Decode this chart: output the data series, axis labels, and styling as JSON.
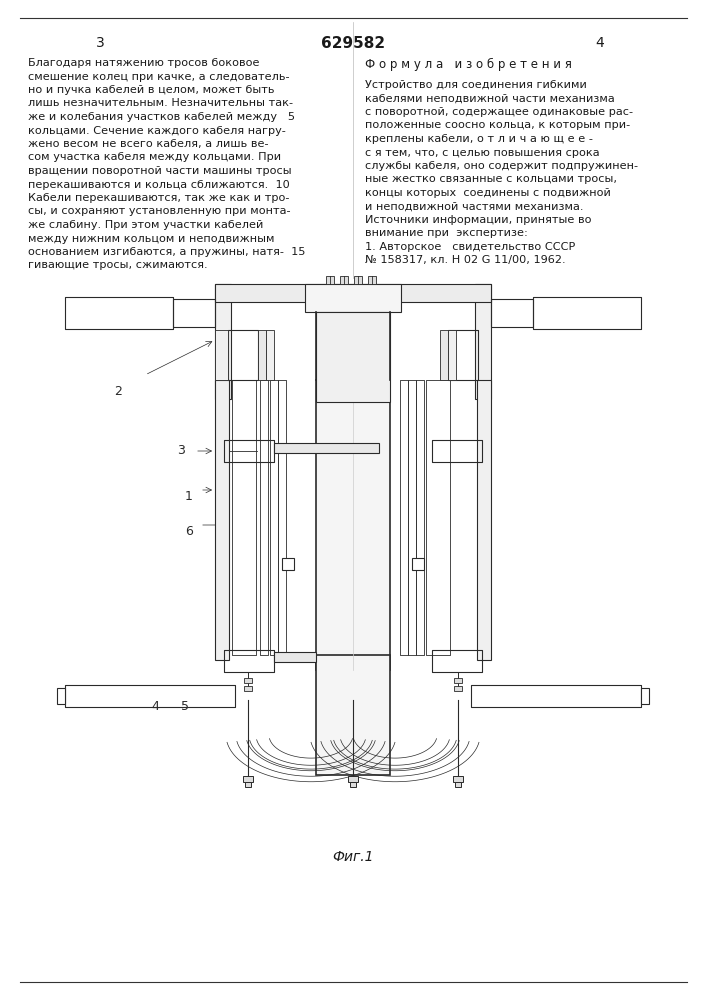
{
  "page_number_left": "3",
  "page_number_center": "629582",
  "page_number_right": "4",
  "left_column_text": [
    "Благодаря натяжению тросов боковое",
    "смешение колец при качке, а следователь-",
    "но и пучка кабелей в целом, может быть",
    "лишь незначительным. Незначительны так-",
    "же и колебания участков кабелей между   5",
    "кольцами. Сечение каждого кабеля нагру-",
    "жено весом не всего кабеля, а лишь ве-",
    "сом участка кабеля между кольцами. При",
    "вращении поворотной части машины тросы",
    "перекашиваются и кольца сближаются.  10",
    "Кабели перекашиваются, так же как и тро-",
    "сы, и сохраняют установленную при монта-",
    "же слабину. При этом участки кабелей",
    "между нижним кольцом и неподвижным",
    "основанием изгибаются, а пружины, натя-  15",
    "гивающие тросы, сжимаются."
  ],
  "right_column_title": "Ф о р м у л а   и з о б р е т е н и я",
  "right_column_text": [
    "Устройство для соединения гибкими",
    "кабелями неподвижной части механизма",
    "с поворотной, содержащее одинаковые рас-",
    "положенные соосно кольца, к которым при-",
    "креплены кабели, о т л и ч а ю щ е е -",
    "с я тем, что, с целью повышения срока",
    "службы кабеля, оно содержит подпружинен-",
    "ные жестко связанные с кольцами тросы,",
    "концы которых  соединены с подвижной",
    "и неподвижной частями механизма.",
    "Источники информации, принятые во",
    "внимание при  экспертизе:",
    "1. Авторское   свидетельство СССР",
    "№ 158317, кл. Н 02 G 11/00, 1962."
  ],
  "figure_caption": "Фиг.1",
  "bg_color": "#ffffff",
  "text_color": "#1a1a1a",
  "line_color": "#2a2a2a"
}
